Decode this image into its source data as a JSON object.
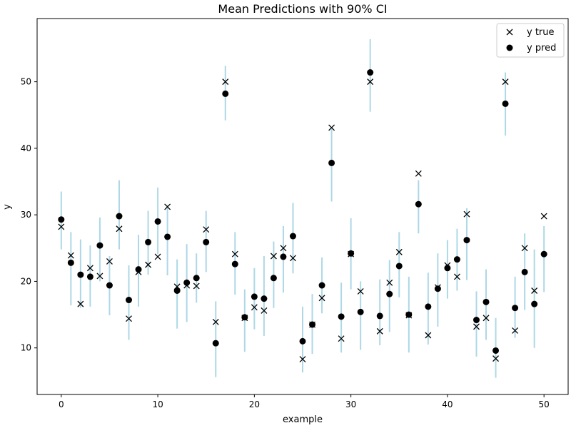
{
  "chart_data": {
    "type": "scatter",
    "title": "Mean Predictions with 90% CI",
    "xlabel": "example",
    "ylabel": "y",
    "xlim": [
      -2.5,
      52.5
    ],
    "ylim": [
      3,
      59.5
    ],
    "xticks": [
      0,
      10,
      20,
      30,
      40,
      50
    ],
    "yticks": [
      10,
      20,
      30,
      40,
      50
    ],
    "grid": false,
    "legend": "top-right",
    "series": [
      {
        "name": "y true",
        "marker": "x",
        "color": "#000000",
        "x": [
          0,
          1,
          2,
          3,
          4,
          5,
          6,
          7,
          8,
          9,
          10,
          11,
          12,
          13,
          14,
          15,
          16,
          17,
          18,
          19,
          20,
          21,
          22,
          23,
          24,
          25,
          26,
          27,
          28,
          29,
          30,
          31,
          32,
          33,
          34,
          35,
          36,
          37,
          38,
          39,
          40,
          41,
          42,
          43,
          44,
          45,
          46,
          47,
          48,
          49,
          50
        ],
        "y": [
          28.2,
          23.9,
          16.6,
          22.0,
          20.8,
          23.0,
          27.9,
          14.4,
          21.4,
          22.5,
          23.7,
          31.2,
          19.2,
          19.4,
          19.3,
          27.8,
          13.9,
          50.0,
          24.1,
          14.5,
          16.1,
          15.6,
          23.8,
          25.0,
          23.5,
          8.3,
          13.5,
          17.5,
          43.1,
          11.4,
          24.1,
          18.5,
          50.0,
          12.5,
          19.8,
          24.4,
          14.9,
          36.2,
          11.9,
          19.1,
          22.4,
          20.7,
          30.1,
          13.2,
          14.5,
          8.4,
          50.0,
          12.6,
          25.0,
          18.6,
          29.8
        ]
      },
      {
        "name": "y pred",
        "marker": "o",
        "color": "#000000",
        "x": [
          0,
          1,
          2,
          3,
          4,
          5,
          6,
          7,
          8,
          9,
          10,
          11,
          12,
          13,
          14,
          15,
          16,
          17,
          18,
          19,
          20,
          21,
          22,
          23,
          24,
          25,
          26,
          27,
          28,
          29,
          30,
          31,
          32,
          33,
          34,
          35,
          36,
          37,
          38,
          39,
          40,
          41,
          42,
          43,
          44,
          45,
          46,
          47,
          48,
          49,
          50
        ],
        "y": [
          29.3,
          22.8,
          21.0,
          20.7,
          25.4,
          19.4,
          29.8,
          17.2,
          21.8,
          25.9,
          29.0,
          26.7,
          18.6,
          19.8,
          20.5,
          25.9,
          10.7,
          48.2,
          22.6,
          14.6,
          17.7,
          17.4,
          20.5,
          23.7,
          26.8,
          11.0,
          13.5,
          19.4,
          37.8,
          14.7,
          24.2,
          15.4,
          51.4,
          14.8,
          18.1,
          22.3,
          15.0,
          31.6,
          16.2,
          18.9,
          22.0,
          23.3,
          26.2,
          14.2,
          16.9,
          9.6,
          46.7,
          16.0,
          21.4,
          16.6,
          24.1
        ]
      }
    ],
    "ci_band": {
      "label": "90% CI",
      "color": "#add8e6",
      "lower": [
        24.8,
        16.4,
        16.0,
        16.2,
        20.0,
        14.9,
        24.8,
        11.2,
        16.2,
        21.0,
        24.1,
        20.9,
        12.9,
        13.9,
        16.8,
        21.4,
        5.6,
        44.2,
        18.0,
        9.4,
        12.8,
        11.8,
        16.0,
        18.3,
        21.2,
        6.3,
        9.1,
        15.2,
        32.0,
        9.3,
        18.8,
        9.7,
        45.5,
        10.4,
        12.4,
        17.6,
        9.3,
        27.2,
        10.5,
        13.2,
        17.4,
        18.6,
        20.2,
        8.7,
        11.2,
        5.5,
        41.9,
        11.5,
        15.7,
        10.0,
        18.4
      ],
      "upper": [
        33.5,
        27.4,
        26.3,
        25.4,
        29.6,
        23.8,
        35.2,
        22.4,
        27.0,
        30.6,
        34.1,
        31.5,
        23.3,
        25.6,
        24.2,
        30.6,
        17.0,
        52.4,
        27.4,
        18.8,
        22.0,
        23.8,
        26.0,
        28.3,
        31.8,
        16.2,
        18.1,
        23.6,
        43.0,
        19.8,
        29.5,
        20.0,
        56.4,
        20.3,
        23.2,
        27.4,
        20.7,
        35.2,
        21.3,
        24.2,
        26.2,
        27.9,
        31.0,
        18.5,
        21.8,
        14.5,
        51.4,
        20.7,
        27.2,
        24.8,
        28.3
      ]
    }
  }
}
